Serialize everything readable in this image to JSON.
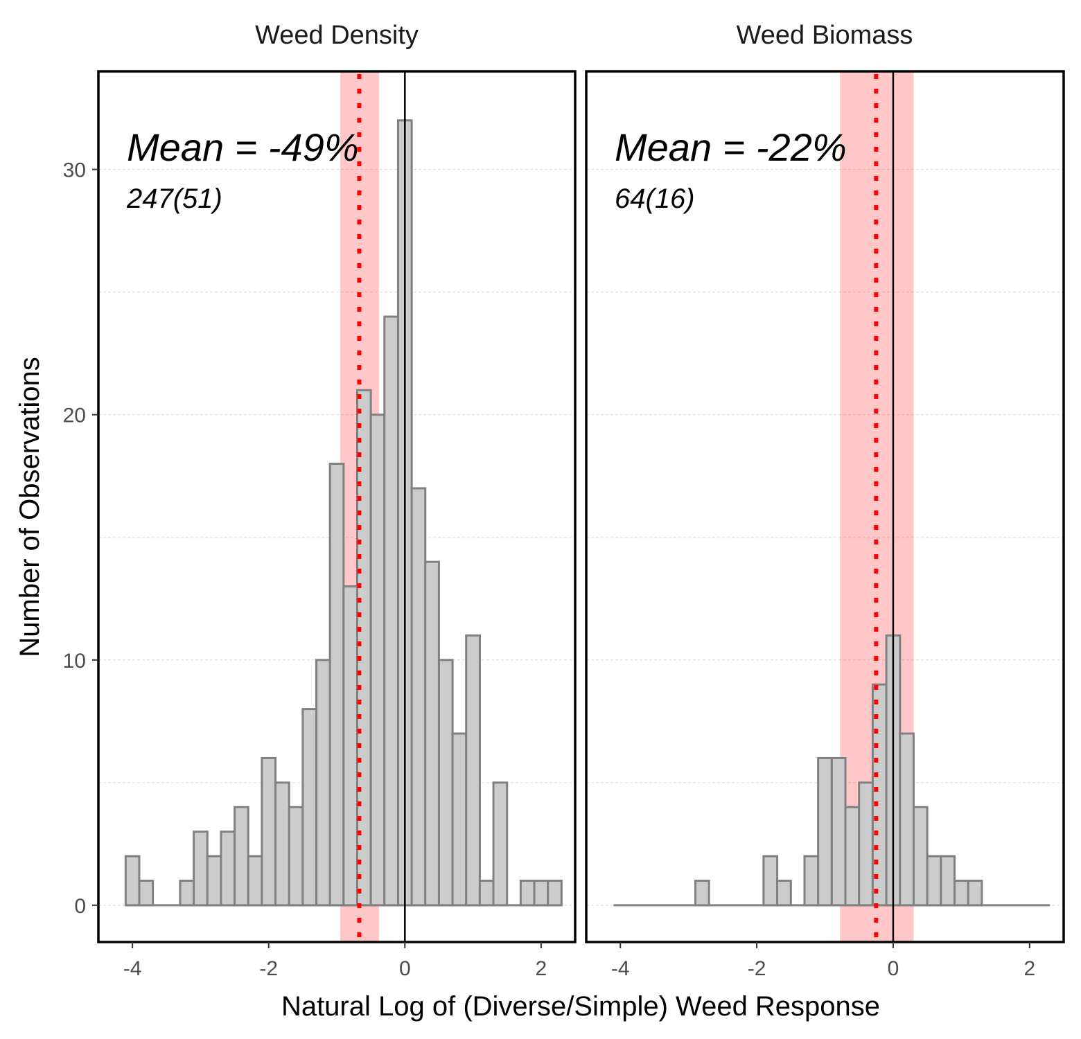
{
  "chart_data": [
    {
      "type": "bar",
      "title": "Weed Density",
      "annotation_mean": "Mean = -49%",
      "annotation_n": "247(51)",
      "bin_width": 0.2,
      "bin_left_edges": [
        -4.1,
        -3.9,
        -3.7,
        -3.5,
        -3.3,
        -3.1,
        -2.9,
        -2.7,
        -2.5,
        -2.3,
        -2.1,
        -1.9,
        -1.7,
        -1.5,
        -1.3,
        -1.1,
        -0.9,
        -0.7,
        -0.5,
        -0.3,
        -0.1,
        0.1,
        0.3,
        0.5,
        0.7,
        0.9,
        1.1,
        1.3,
        1.5,
        1.7,
        1.9,
        2.1
      ],
      "counts": [
        2,
        1,
        0,
        0,
        1,
        3,
        2,
        3,
        4,
        2,
        6,
        5,
        4,
        8,
        10,
        18,
        13,
        21,
        20,
        24,
        32,
        17,
        14,
        10,
        7,
        11,
        1,
        5,
        0,
        1,
        1,
        1
      ],
      "mean_line_x": -0.67,
      "ci": [
        -0.95,
        -0.38
      ],
      "zero_line_x": 0,
      "xlim": [
        -4.5,
        2.5
      ],
      "ylim": [
        -1.5,
        34
      ],
      "x_ticks": [
        -4,
        -2,
        0,
        2
      ],
      "y_ticks": [
        0,
        10,
        20,
        30
      ],
      "x_tick_labels": [
        "-4",
        "-2",
        "0",
        "2"
      ],
      "y_tick_labels": [
        "0",
        "10",
        "20",
        "30"
      ],
      "grid": "dashed horizontal",
      "colors": {
        "bar_fill": "#cccccc",
        "bar_outline": "#808080",
        "ci_band": "#ff0000",
        "mean_line": "#ff0000",
        "zero_line": "#000000"
      }
    },
    {
      "type": "bar",
      "title": "Weed Biomass",
      "annotation_mean": "Mean = -22%",
      "annotation_n": "64(16)",
      "bin_width": 0.2,
      "bin_left_edges": [
        -4.1,
        -3.9,
        -3.7,
        -3.5,
        -3.3,
        -3.1,
        -2.9,
        -2.7,
        -2.5,
        -2.3,
        -2.1,
        -1.9,
        -1.7,
        -1.5,
        -1.3,
        -1.1,
        -0.9,
        -0.7,
        -0.5,
        -0.3,
        -0.1,
        0.1,
        0.3,
        0.5,
        0.7,
        0.9,
        1.1,
        1.3,
        1.5,
        1.7,
        1.9,
        2.1
      ],
      "counts": [
        0,
        0,
        0,
        0,
        0,
        0,
        1,
        0,
        0,
        0,
        0,
        2,
        1,
        0,
        2,
        6,
        6,
        4,
        5,
        9,
        11,
        7,
        4,
        2,
        2,
        1,
        1,
        0,
        0,
        0,
        0,
        0
      ],
      "mean_line_x": -0.25,
      "ci": [
        -0.78,
        0.3
      ],
      "zero_line_x": 0,
      "xlim": [
        -4.5,
        2.5
      ],
      "ylim": [
        -1.5,
        34
      ],
      "x_ticks": [
        -4,
        -2,
        0,
        2
      ],
      "x_tick_labels": [
        "-4",
        "-2",
        "0",
        "2"
      ],
      "grid": "dashed horizontal",
      "colors": {
        "bar_fill": "#cccccc",
        "bar_outline": "#808080",
        "ci_band": "#ff0000",
        "mean_line": "#ff0000",
        "zero_line": "#000000"
      }
    }
  ],
  "axes": {
    "ylabel": "Number of Observations",
    "xlabel": "Natural Log of (Diverse/Simple) Weed Response"
  }
}
